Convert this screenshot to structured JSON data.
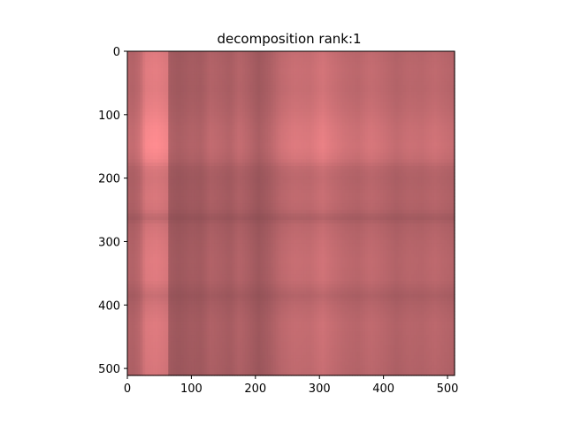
{
  "chart_data": {
    "type": "heatmap",
    "title": "decomposition rank:1",
    "xlabel": "",
    "ylabel": "",
    "xlim": [
      0,
      511
    ],
    "ylim": [
      511,
      0
    ],
    "x_ticks": [
      0,
      100,
      200,
      300,
      400,
      500
    ],
    "y_ticks": [
      0,
      100,
      200,
      300,
      400,
      500
    ],
    "grid": false,
    "colormap": "rgb outer-product (rank-1 approximation)",
    "colors": {
      "base": "#b8686c",
      "highlight": "#ff8a8c",
      "dark": "#6e4046"
    },
    "column_profile": [
      {
        "x": 0,
        "v": 0.62
      },
      {
        "x": 8,
        "v": 0.55
      },
      {
        "x": 20,
        "v": 0.66
      },
      {
        "x": 28,
        "v": 0.92
      },
      {
        "x": 45,
        "v": 0.96
      },
      {
        "x": 62,
        "v": 0.88
      },
      {
        "x": 66,
        "v": 0.45
      },
      {
        "x": 80,
        "v": 0.4
      },
      {
        "x": 100,
        "v": 0.46
      },
      {
        "x": 115,
        "v": 0.44
      },
      {
        "x": 130,
        "v": 0.56
      },
      {
        "x": 145,
        "v": 0.52
      },
      {
        "x": 160,
        "v": 0.47
      },
      {
        "x": 175,
        "v": 0.58
      },
      {
        "x": 190,
        "v": 0.5
      },
      {
        "x": 205,
        "v": 0.4
      },
      {
        "x": 222,
        "v": 0.5
      },
      {
        "x": 240,
        "v": 0.66
      },
      {
        "x": 260,
        "v": 0.74
      },
      {
        "x": 285,
        "v": 0.72
      },
      {
        "x": 305,
        "v": 0.82
      },
      {
        "x": 320,
        "v": 0.74
      },
      {
        "x": 340,
        "v": 0.66
      },
      {
        "x": 360,
        "v": 0.62
      },
      {
        "x": 380,
        "v": 0.7
      },
      {
        "x": 400,
        "v": 0.64
      },
      {
        "x": 420,
        "v": 0.56
      },
      {
        "x": 440,
        "v": 0.62
      },
      {
        "x": 460,
        "v": 0.6
      },
      {
        "x": 480,
        "v": 0.66
      },
      {
        "x": 500,
        "v": 0.6
      },
      {
        "x": 511,
        "v": 0.58
      }
    ],
    "row_profile": [
      {
        "y": 0,
        "v": 0.78
      },
      {
        "y": 30,
        "v": 0.82
      },
      {
        "y": 60,
        "v": 0.8
      },
      {
        "y": 90,
        "v": 0.86
      },
      {
        "y": 120,
        "v": 0.96
      },
      {
        "y": 150,
        "v": 1.0
      },
      {
        "y": 170,
        "v": 0.92
      },
      {
        "y": 185,
        "v": 0.74
      },
      {
        "y": 200,
        "v": 0.7
      },
      {
        "y": 230,
        "v": 0.74
      },
      {
        "y": 250,
        "v": 0.7
      },
      {
        "y": 262,
        "v": 0.55
      },
      {
        "y": 275,
        "v": 0.7
      },
      {
        "y": 300,
        "v": 0.76
      },
      {
        "y": 330,
        "v": 0.8
      },
      {
        "y": 360,
        "v": 0.78
      },
      {
        "y": 385,
        "v": 0.62
      },
      {
        "y": 400,
        "v": 0.7
      },
      {
        "y": 430,
        "v": 0.78
      },
      {
        "y": 460,
        "v": 0.76
      },
      {
        "y": 490,
        "v": 0.74
      },
      {
        "y": 511,
        "v": 0.72
      }
    ]
  }
}
